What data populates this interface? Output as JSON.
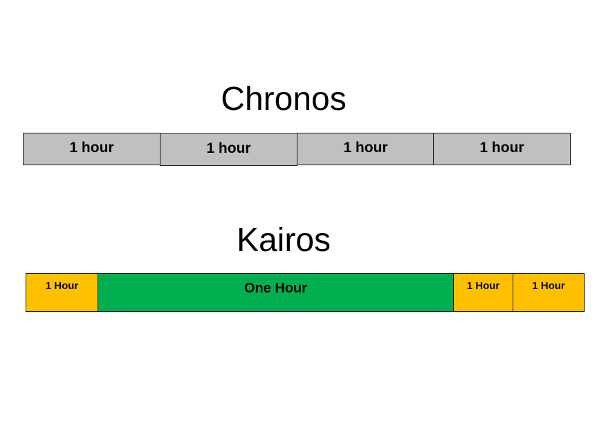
{
  "chronos": {
    "title": "Chronos",
    "blocks": [
      {
        "label": "1 hour",
        "color": "#c0c0c0"
      },
      {
        "label": "1 hour",
        "color": "#c0c0c0"
      },
      {
        "label": "1 hour",
        "color": "#c0c0c0"
      },
      {
        "label": "1 hour",
        "color": "#c0c0c0"
      }
    ]
  },
  "kairos": {
    "title": "Kairos",
    "blocks": [
      {
        "label": "1 Hour",
        "color": "#ffc000"
      },
      {
        "label": "One Hour",
        "color": "#00b050"
      },
      {
        "label": "1 Hour",
        "color": "#ffc000"
      },
      {
        "label": "1 Hour",
        "color": "#ffc000"
      }
    ]
  }
}
